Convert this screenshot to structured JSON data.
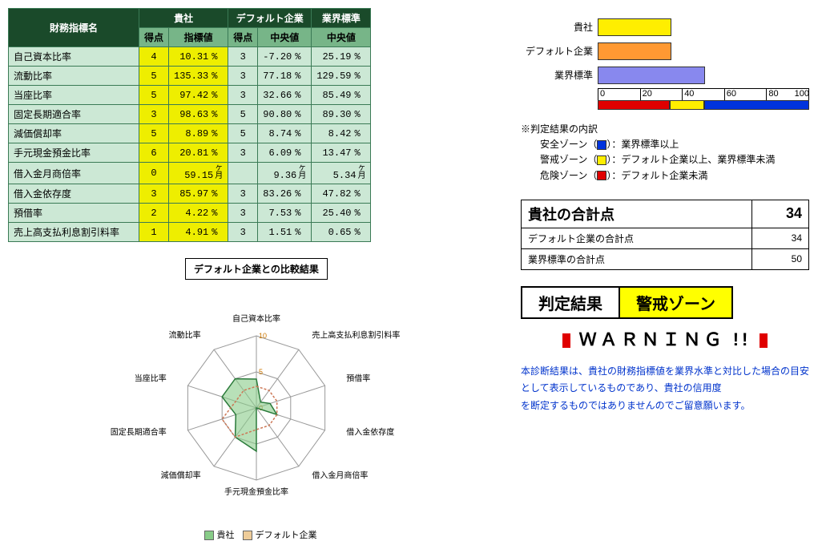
{
  "table": {
    "headers": {
      "name": "財務指標名",
      "company": "貴社",
      "default_co": "デフォルト企業",
      "industry": "業界標準",
      "score": "得点",
      "value": "指標値",
      "median": "中央値"
    },
    "rows": [
      {
        "name": "自己資本比率",
        "s1": "4",
        "v1": "10.31",
        "u": "%",
        "s2": "3",
        "v2": "-7.20",
        "v3": "25.19"
      },
      {
        "name": "流動比率",
        "s1": "5",
        "v1": "135.33",
        "u": "%",
        "s2": "3",
        "v2": "77.18",
        "v3": "129.59"
      },
      {
        "name": "当座比率",
        "s1": "5",
        "v1": "97.42",
        "u": "%",
        "s2": "3",
        "v2": "32.66",
        "v3": "85.49"
      },
      {
        "name": "固定長期適合率",
        "s1": "3",
        "v1": "98.63",
        "u": "%",
        "s2": "5",
        "v2": "90.80",
        "v3": "89.30"
      },
      {
        "name": "減価償却率",
        "s1": "5",
        "v1": "8.89",
        "u": "%",
        "s2": "5",
        "v2": "8.74",
        "v3": "8.42"
      },
      {
        "name": "手元現金預金比率",
        "s1": "6",
        "v1": "20.81",
        "u": "%",
        "s2": "3",
        "v2": "6.09",
        "v3": "13.47"
      },
      {
        "name": "借入金月商倍率",
        "s1": "0",
        "v1": "59.15",
        "u": "ヶ月",
        "s2": "",
        "v2": "9.36",
        "v3": "5.34"
      },
      {
        "name": "借入金依存度",
        "s1": "3",
        "v1": "85.97",
        "u": "%",
        "s2": "3",
        "v2": "83.26",
        "v3": "47.82"
      },
      {
        "name": "預借率",
        "s1": "2",
        "v1": "4.22",
        "u": "%",
        "s2": "3",
        "v2": "7.53",
        "v3": "25.40"
      },
      {
        "name": "売上高支払利息割引料率",
        "s1": "1",
        "v1": "4.91",
        "u": "%",
        "s2": "3",
        "v2": "1.51",
        "v3": "0.65"
      }
    ]
  },
  "radar": {
    "title": "デフォルト企業との比較結果",
    "labels": [
      "自己資本比率",
      "売上高支払利息割引料率",
      "預借率",
      "借入金依存度",
      "借入金月商倍率",
      "手元現金預金比率",
      "減価償却率",
      "固定長期適合率",
      "当座比率",
      "流動比率"
    ],
    "max": 10,
    "ring_labels": [
      "0",
      "5",
      "10"
    ],
    "series": [
      {
        "name": "貴社",
        "color": "#88cc88",
        "stroke": "#2a7a3a",
        "values": [
          4,
          1,
          2,
          3,
          0,
          6,
          5,
          3,
          5,
          5
        ]
      },
      {
        "name": "デフォルト企業",
        "color": "none",
        "stroke": "#cc7755",
        "values": [
          3,
          3,
          3,
          3,
          3,
          3,
          5,
          5,
          3,
          3
        ]
      }
    ],
    "legend": [
      {
        "swatch": "#88cc88",
        "label": "貴社"
      },
      {
        "swatch": "#eecc99",
        "label": "デフォルト企業"
      }
    ]
  },
  "barchart": {
    "max": 100,
    "ticks": [
      "0",
      "20",
      "40",
      "60",
      "80",
      "100"
    ],
    "bars": [
      {
        "label": "貴社",
        "value": 34,
        "color": "#ffee00"
      },
      {
        "label": "デフォルト企業",
        "value": 34,
        "color": "#ff9933"
      },
      {
        "label": "業界標準",
        "value": 50,
        "color": "#8888ee"
      }
    ],
    "zones": [
      {
        "pct": 34,
        "color": "#e00000"
      },
      {
        "pct": 16,
        "color": "#ffee00"
      },
      {
        "pct": 50,
        "color": "#0033dd"
      }
    ]
  },
  "notes": {
    "title": "※判定結果の内訳",
    "items": [
      {
        "zone": "安全ゾーン",
        "color": "#0033dd",
        "desc": "：業界標準以上"
      },
      {
        "zone": "警戒ゾーン",
        "color": "#ffee00",
        "desc": "：デフォルト企業以上、業界標準未満"
      },
      {
        "zone": "危険ゾーン",
        "color": "#e00000",
        "desc": "：デフォルト企業未満"
      }
    ]
  },
  "scores": {
    "rows": [
      {
        "label": "貴社の合計点",
        "value": "34",
        "big": true
      },
      {
        "label": "デフォルト企業の合計点",
        "value": "34",
        "big": false
      },
      {
        "label": "業界標準の合計点",
        "value": "50",
        "big": false
      }
    ]
  },
  "judgment": {
    "label": "判定結果",
    "value": "警戒ゾーン"
  },
  "warning": "ＷＡＲＮＩＮＧ !!",
  "disclaimer": "本診断結果は、貴社の財務指標値を業界水準と対比した場合の目安として表示しているものであり、貴社の信用度\nを断定するものではありませんのでご留意願います。"
}
